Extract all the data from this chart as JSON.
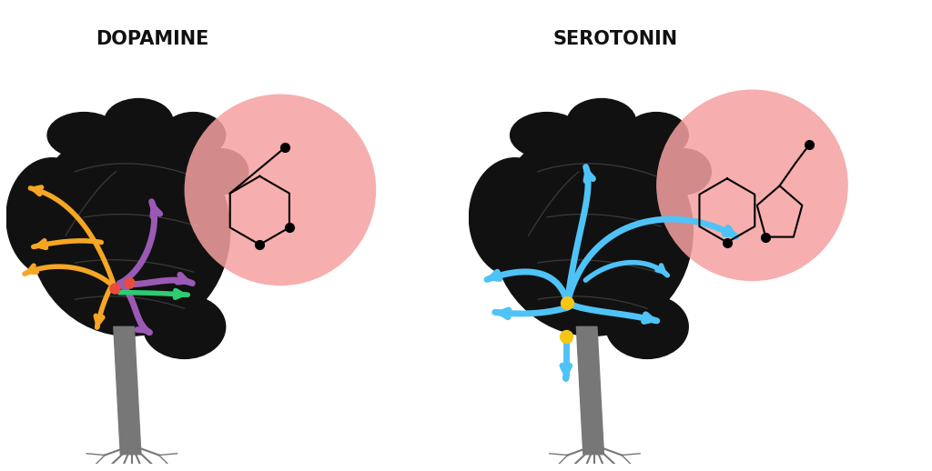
{
  "background_color": "#ffffff",
  "title_dopamine": "DOPAMINE",
  "title_serotonin": "SEROTONIN",
  "title_fontsize": 15,
  "title_color": "#111111",
  "brain_color": "#111111",
  "brain_outline_color": "#444444",
  "pink_circle_color": "#f5a0a0",
  "pink_circle_alpha": 0.85,
  "dopamine_colors": [
    "#f5a623",
    "#9b59b6",
    "#2ecc71",
    "#e74c3c"
  ],
  "serotonin_color": "#4fc3f7",
  "node_color_dopamine": "#e74c3c",
  "node_color_serotonin": "#f5c518",
  "stem_color": "#777777"
}
